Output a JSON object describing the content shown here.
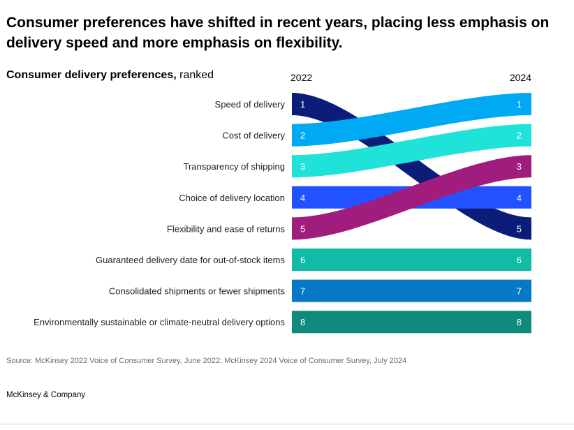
{
  "title": "Consumer preferences have shifted in recent years, placing less emphasis on delivery speed and more emphasis on flexibility.",
  "subtitle_strong": "Consumer delivery preferences,",
  "subtitle_rest": " ranked",
  "source": "Source: McKinsey 2022 Voice of Consumer Survey, June 2022; McKinsey 2024 Voice of Consumer Survey, July 2024",
  "brand": "McKinsey & Company",
  "chart_data": {
    "type": "bump",
    "title": "Consumer delivery preferences, ranked",
    "x_labels": [
      "2022",
      "2024"
    ],
    "categories": [
      "Speed of delivery",
      "Cost of delivery",
      "Transparency of shipping",
      "Choice of delivery location",
      "Flexibility and ease of returns",
      "Guaranteed delivery date for out-of-stock items",
      "Consolidated shipments or fewer shipments",
      "Environmentally sustainable or climate-neutral delivery options"
    ],
    "series": [
      {
        "name": "Speed of delivery",
        "rank_2022": 1,
        "rank_2024": 5,
        "color": "#0b1d78"
      },
      {
        "name": "Cost of delivery",
        "rank_2022": 2,
        "rank_2024": 1,
        "color": "#00a9f4"
      },
      {
        "name": "Transparency of shipping",
        "rank_2022": 3,
        "rank_2024": 2,
        "color": "#1fe3d8"
      },
      {
        "name": "Choice of delivery location",
        "rank_2022": 4,
        "rank_2024": 4,
        "color": "#2251ff"
      },
      {
        "name": "Flexibility and ease of returns",
        "rank_2022": 5,
        "rank_2024": 3,
        "color": "#a01c7d"
      },
      {
        "name": "Guaranteed delivery date for out-of-stock items",
        "rank_2022": 6,
        "rank_2024": 6,
        "color": "#11bba5"
      },
      {
        "name": "Consolidated shipments or fewer shipments",
        "rank_2022": 7,
        "rank_2024": 7,
        "color": "#0679c6"
      },
      {
        "name": "Environmentally sustainable or climate-neutral delivery options",
        "rank_2022": 8,
        "rank_2024": 8,
        "color": "#0f8a7d"
      }
    ],
    "draw_order": [
      "Speed of delivery",
      "Choice of delivery location",
      "Guaranteed delivery date for out-of-stock items",
      "Consolidated shipments or fewer shipments",
      "Environmentally sustainable or climate-neutral delivery options",
      "Flexibility and ease of returns",
      "Transparency of shipping",
      "Cost of delivery"
    ]
  }
}
